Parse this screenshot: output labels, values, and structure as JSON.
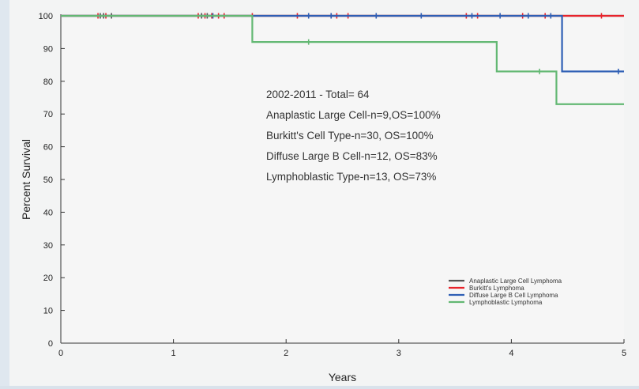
{
  "chart_data": {
    "type": "line",
    "step": true,
    "xlabel": "Years",
    "ylabel": "Percent Survival",
    "xlim": [
      0,
      5
    ],
    "ylim": [
      0,
      100
    ],
    "xticks": [
      "0",
      "1",
      "2",
      "3",
      "4",
      "5"
    ],
    "yticks": [
      "0",
      "10",
      "20",
      "30",
      "40",
      "50",
      "60",
      "70",
      "80",
      "90",
      "100"
    ],
    "grid": false,
    "legend_position": "lower-right",
    "annotations": [
      "2002-2011 - Total= 64",
      "Anaplastic Large Cell-n=9,OS=100%",
      "Burkitt's Cell Type-n=30, OS=100%",
      "Diffuse Large B Cell-n=12, OS=83%",
      "Lymphoblastic Type-n=13, OS=73%"
    ],
    "series": [
      {
        "name": "Anaplastic Large Cell Lymphoma",
        "color": "#555555",
        "x": [
          0,
          5
        ],
        "y": [
          100,
          100
        ],
        "censor_x": [
          0.35,
          0.38,
          0.45,
          1.25,
          1.3
        ]
      },
      {
        "name": "Burkitt's Lymphoma",
        "color": "#e8232b",
        "x": [
          0,
          5
        ],
        "y": [
          100,
          100
        ],
        "censor_x": [
          0.33,
          0.4,
          1.22,
          1.28,
          1.34,
          1.4,
          1.45,
          1.7,
          2.1,
          2.4,
          2.45,
          2.55,
          3.6,
          3.7,
          4.1,
          4.3,
          4.8
        ]
      },
      {
        "name": "Diffuse Large B Cell Lymphoma",
        "color": "#2f5fb5",
        "x": [
          0,
          4.45,
          4.45,
          5
        ],
        "y": [
          100,
          100,
          83,
          83
        ],
        "censor_x": [
          1.35,
          2.2,
          2.4,
          2.8,
          3.2,
          3.65,
          3.9,
          4.15,
          4.35,
          4.95
        ]
      },
      {
        "name": "Lymphoblastic Lymphoma",
        "color": "#63b873",
        "x": [
          0,
          1.7,
          1.7,
          3.87,
          3.87,
          4.4,
          4.4,
          5
        ],
        "y": [
          100,
          100,
          92,
          92,
          83,
          83,
          73,
          73
        ],
        "censor_x": [
          2.2,
          4.25
        ]
      }
    ]
  }
}
